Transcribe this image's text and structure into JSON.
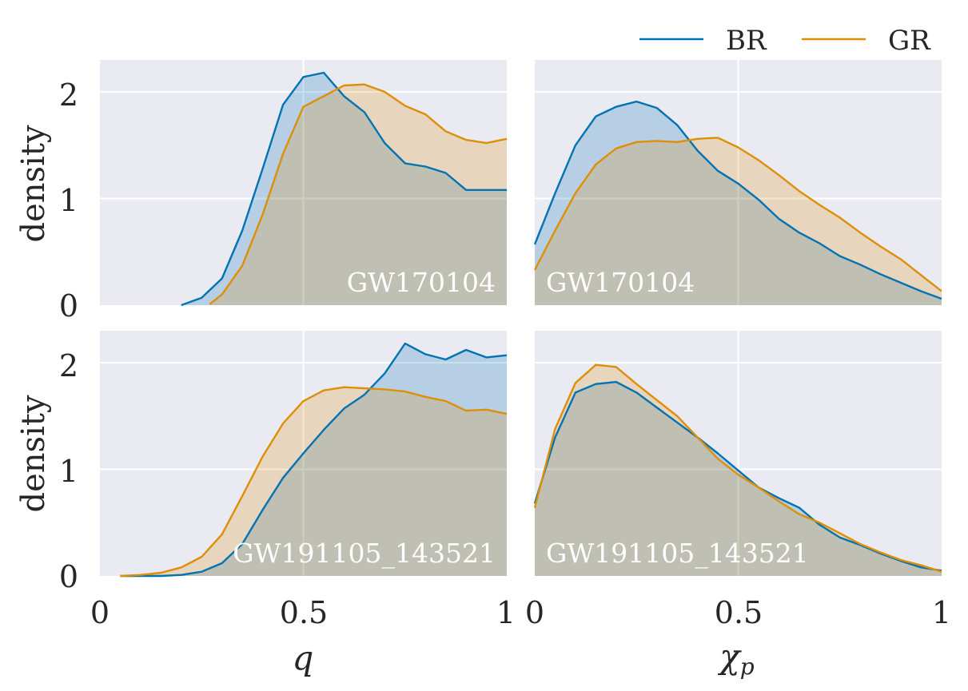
{
  "chart_data": {
    "type": "area",
    "legend": {
      "position": "top-right",
      "entries": [
        {
          "name": "BR",
          "color": "#0173b2"
        },
        {
          "name": "GR",
          "color": "#de8f05"
        }
      ]
    },
    "ylabel": "density",
    "x_tick_labels": {
      "q": [
        "0",
        "0.5",
        "1"
      ],
      "chi": [
        "0",
        "0.5",
        "1"
      ]
    },
    "y_tick_labels": [
      "0",
      "1",
      "2"
    ],
    "xlabels": {
      "q": "q",
      "chi_symbol": "χ",
      "chi_sub": "p"
    },
    "xlim": [
      0,
      1
    ],
    "ylim": [
      0,
      2.3
    ],
    "grid": true,
    "panels": [
      {
        "event": "GW170104",
        "param": "q",
        "annot_align": "right",
        "series": [
          {
            "name": "BR",
            "x": [
              0.2,
              0.25,
              0.3,
              0.35,
              0.4,
              0.45,
              0.5,
              0.55,
              0.6,
              0.65,
              0.7,
              0.75,
              0.8,
              0.85,
              0.9,
              0.95,
              1.0
            ],
            "y": [
              0.0,
              0.07,
              0.25,
              0.7,
              1.28,
              1.88,
              2.14,
              2.18,
              1.96,
              1.81,
              1.52,
              1.33,
              1.3,
              1.24,
              1.08,
              1.08,
              1.08
            ]
          },
          {
            "name": "GR",
            "x": [
              0.27,
              0.3,
              0.35,
              0.4,
              0.45,
              0.5,
              0.55,
              0.6,
              0.65,
              0.7,
              0.75,
              0.8,
              0.85,
              0.9,
              0.95,
              1.0
            ],
            "y": [
              0.01,
              0.1,
              0.37,
              0.85,
              1.42,
              1.86,
              1.96,
              2.06,
              2.07,
              2.0,
              1.87,
              1.79,
              1.63,
              1.55,
              1.52,
              1.56
            ]
          }
        ]
      },
      {
        "event": "GW170104",
        "param": "chi",
        "annot_align": "left",
        "series": [
          {
            "name": "BR",
            "x": [
              0.0,
              0.05,
              0.1,
              0.15,
              0.2,
              0.25,
              0.3,
              0.35,
              0.4,
              0.45,
              0.5,
              0.55,
              0.6,
              0.65,
              0.7,
              0.75,
              0.8,
              0.85,
              0.9,
              0.95,
              1.0
            ],
            "y": [
              0.57,
              1.05,
              1.5,
              1.77,
              1.86,
              1.91,
              1.85,
              1.69,
              1.45,
              1.26,
              1.14,
              0.99,
              0.81,
              0.68,
              0.58,
              0.46,
              0.38,
              0.29,
              0.21,
              0.13,
              0.06
            ]
          },
          {
            "name": "GR",
            "x": [
              0.0,
              0.05,
              0.1,
              0.15,
              0.2,
              0.25,
              0.3,
              0.35,
              0.4,
              0.45,
              0.5,
              0.55,
              0.6,
              0.65,
              0.7,
              0.75,
              0.8,
              0.85,
              0.9,
              0.95,
              1.0
            ],
            "y": [
              0.33,
              0.7,
              1.05,
              1.32,
              1.47,
              1.53,
              1.54,
              1.53,
              1.56,
              1.57,
              1.48,
              1.36,
              1.22,
              1.07,
              0.94,
              0.82,
              0.68,
              0.55,
              0.43,
              0.28,
              0.13
            ]
          }
        ]
      },
      {
        "event": "GW191105_143521",
        "param": "q",
        "annot_align": "right",
        "series": [
          {
            "name": "BR",
            "x": [
              0.05,
              0.1,
              0.15,
              0.2,
              0.25,
              0.3,
              0.35,
              0.4,
              0.45,
              0.5,
              0.55,
              0.6,
              0.65,
              0.7,
              0.75,
              0.8,
              0.85,
              0.9,
              0.95,
              1.0
            ],
            "y": [
              0.0,
              0.0,
              0.0,
              0.01,
              0.04,
              0.12,
              0.3,
              0.62,
              0.92,
              1.15,
              1.37,
              1.57,
              1.7,
              1.9,
              2.18,
              2.08,
              2.03,
              2.12,
              2.05,
              2.07
            ]
          },
          {
            "name": "GR",
            "x": [
              0.05,
              0.1,
              0.15,
              0.2,
              0.25,
              0.3,
              0.35,
              0.4,
              0.45,
              0.5,
              0.55,
              0.6,
              0.65,
              0.7,
              0.75,
              0.8,
              0.85,
              0.9,
              0.95,
              1.0
            ],
            "y": [
              0.0,
              0.01,
              0.03,
              0.08,
              0.18,
              0.39,
              0.75,
              1.12,
              1.43,
              1.64,
              1.74,
              1.77,
              1.76,
              1.75,
              1.73,
              1.68,
              1.64,
              1.55,
              1.56,
              1.52
            ]
          }
        ]
      },
      {
        "event": "GW191105_143521",
        "param": "chi",
        "annot_align": "left",
        "series": [
          {
            "name": "BR",
            "x": [
              0.0,
              0.05,
              0.1,
              0.15,
              0.2,
              0.25,
              0.3,
              0.35,
              0.4,
              0.45,
              0.5,
              0.55,
              0.6,
              0.65,
              0.7,
              0.75,
              0.8,
              0.85,
              0.9,
              0.95,
              1.0
            ],
            "y": [
              0.68,
              1.3,
              1.72,
              1.8,
              1.82,
              1.72,
              1.58,
              1.44,
              1.3,
              1.15,
              0.99,
              0.83,
              0.73,
              0.64,
              0.48,
              0.36,
              0.29,
              0.21,
              0.14,
              0.08,
              0.05
            ]
          },
          {
            "name": "GR",
            "x": [
              0.0,
              0.05,
              0.1,
              0.15,
              0.2,
              0.25,
              0.3,
              0.35,
              0.4,
              0.45,
              0.5,
              0.55,
              0.6,
              0.65,
              0.7,
              0.75,
              0.8,
              0.85,
              0.9,
              0.95,
              1.0
            ],
            "y": [
              0.64,
              1.38,
              1.81,
              1.98,
              1.96,
              1.8,
              1.65,
              1.5,
              1.3,
              1.1,
              0.95,
              0.83,
              0.7,
              0.58,
              0.5,
              0.4,
              0.3,
              0.22,
              0.15,
              0.1,
              0.04
            ]
          }
        ]
      }
    ]
  }
}
